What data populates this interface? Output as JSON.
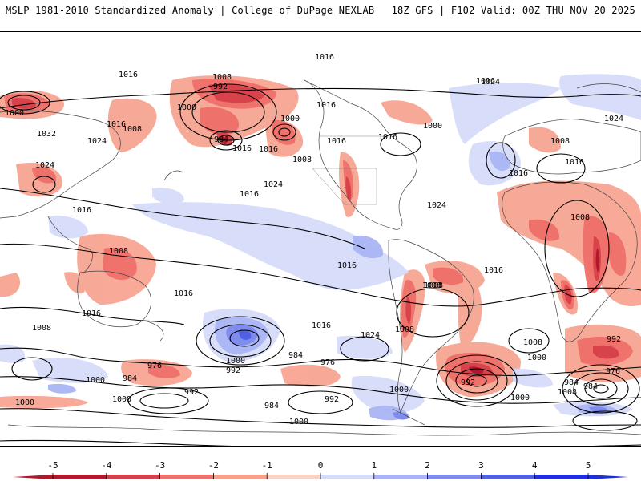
{
  "header": {
    "left_title": "MSLP 1981-2010 Standardized Anomaly | College of DuPage NEXLAB",
    "right_title": "18Z GFS | F102 Valid: 00Z THU NOV 20 2025"
  },
  "colorbar": {
    "ticks": [
      "-5",
      "-4",
      "-3",
      "-2",
      "-1",
      "0",
      "1",
      "2",
      "3",
      "4",
      "5"
    ],
    "colors": [
      "#b2182b",
      "#d6404a",
      "#ef6f6a",
      "#f7a08c",
      "#fcd2c4",
      "#ffffff",
      "#d6dcfa",
      "#aab4f4",
      "#7f8ced",
      "#5060e6",
      "#1f2fd9"
    ]
  },
  "isobar_labels": [
    {
      "text": "1016"
    },
    {
      "text": "1016"
    },
    {
      "text": "1008"
    },
    {
      "text": "992"
    },
    {
      "text": "1000"
    },
    {
      "text": "984"
    },
    {
      "text": "1000"
    },
    {
      "text": "1008"
    },
    {
      "text": "1016"
    },
    {
      "text": "1016"
    },
    {
      "text": "1008"
    },
    {
      "text": "1016"
    },
    {
      "text": "1024"
    },
    {
      "text": "1000"
    },
    {
      "text": "1016"
    },
    {
      "text": "1016"
    },
    {
      "text": "1024"
    },
    {
      "text": "1000"
    },
    {
      "text": "1016"
    },
    {
      "text": "1032"
    },
    {
      "text": "1024"
    },
    {
      "text": "1024"
    },
    {
      "text": "1008"
    },
    {
      "text": "1016"
    },
    {
      "text": "1016"
    },
    {
      "text": "1024"
    },
    {
      "text": "1016"
    },
    {
      "text": "1008"
    },
    {
      "text": "1016"
    },
    {
      "text": "1016"
    },
    {
      "text": "1008"
    },
    {
      "text": "1016"
    },
    {
      "text": "1016"
    },
    {
      "text": "1016"
    },
    {
      "text": "1024"
    },
    {
      "text": "1016"
    },
    {
      "text": "1024"
    },
    {
      "text": "1008"
    },
    {
      "text": "1008"
    },
    {
      "text": "1016"
    },
    {
      "text": "1008"
    },
    {
      "text": "1008"
    },
    {
      "text": "1000"
    },
    {
      "text": "992"
    },
    {
      "text": "976"
    },
    {
      "text": "1000"
    },
    {
      "text": "992"
    },
    {
      "text": "976"
    },
    {
      "text": "984"
    },
    {
      "text": "984"
    },
    {
      "text": "1000"
    },
    {
      "text": "984"
    },
    {
      "text": "992"
    },
    {
      "text": "984"
    },
    {
      "text": "992"
    },
    {
      "text": "976"
    },
    {
      "text": "984"
    },
    {
      "text": "1008"
    },
    {
      "text": "1000"
    },
    {
      "text": "1000"
    },
    {
      "text": "1008"
    },
    {
      "text": "1000"
    },
    {
      "text": "1000"
    },
    {
      "text": "992"
    },
    {
      "text": "1008"
    }
  ]
}
